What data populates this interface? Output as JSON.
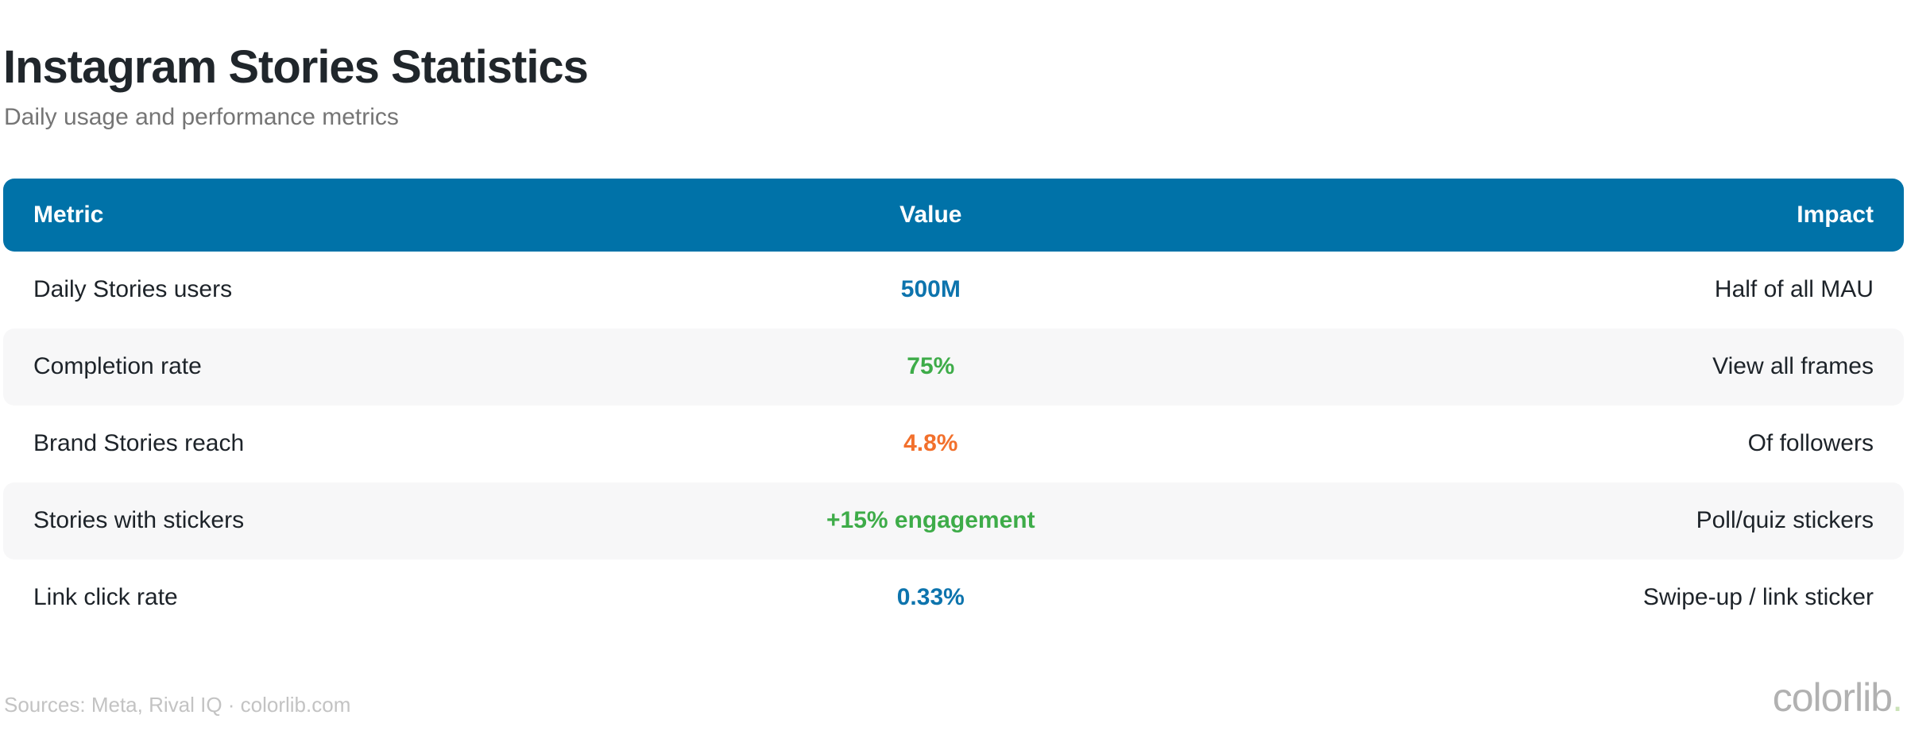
{
  "page": {
    "title": "Instagram Stories Statistics",
    "subtitle": "Daily usage and performance metrics",
    "sources": "Sources: Meta, Rival IQ · colorlib.com",
    "brand": {
      "name": "colorlib",
      "dot": "."
    }
  },
  "colors": {
    "header_bg": "#0072a8",
    "header_text": "#ffffff",
    "stripe_bg": "#f7f7f8",
    "row_text": "#1d2329",
    "value_blue": "#0d74ad",
    "value_green": "#3eac49",
    "value_orange": "#f2702c"
  },
  "table": {
    "columns": [
      {
        "label": "Metric",
        "align": "left"
      },
      {
        "label": "Value",
        "align": "center"
      },
      {
        "label": "Impact",
        "align": "right"
      }
    ],
    "rows": [
      {
        "metric": "Daily Stories users",
        "value": "500M",
        "value_color": "#0d74ad",
        "impact": "Half of all MAU"
      },
      {
        "metric": "Completion rate",
        "value": "75%",
        "value_color": "#3eac49",
        "impact": "View all frames"
      },
      {
        "metric": "Brand Stories reach",
        "value": "4.8%",
        "value_color": "#f2702c",
        "impact": "Of followers"
      },
      {
        "metric": "Stories with stickers",
        "value": "+15% engagement",
        "value_color": "#3eac49",
        "impact": "Poll/quiz stickers"
      },
      {
        "metric": "Link click rate",
        "value": "0.33%",
        "value_color": "#0d74ad",
        "impact": "Swipe-up / link sticker"
      }
    ]
  },
  "chart_data": {
    "type": "table",
    "title": "Instagram Stories Statistics",
    "subtitle": "Daily usage and performance metrics",
    "columns": [
      "Metric",
      "Value",
      "Impact"
    ],
    "rows": [
      [
        "Daily Stories users",
        "500M",
        "Half of all MAU"
      ],
      [
        "Completion rate",
        "75%",
        "View all frames"
      ],
      [
        "Brand Stories reach",
        "4.8%",
        "Of followers"
      ],
      [
        "Stories with stickers",
        "+15% engagement",
        "Poll/quiz stickers"
      ],
      [
        "Link click rate",
        "0.33%",
        "Swipe-up / link sticker"
      ]
    ],
    "source": "Sources: Meta, Rival IQ · colorlib.com",
    "legend_position": "none",
    "grid": false
  }
}
